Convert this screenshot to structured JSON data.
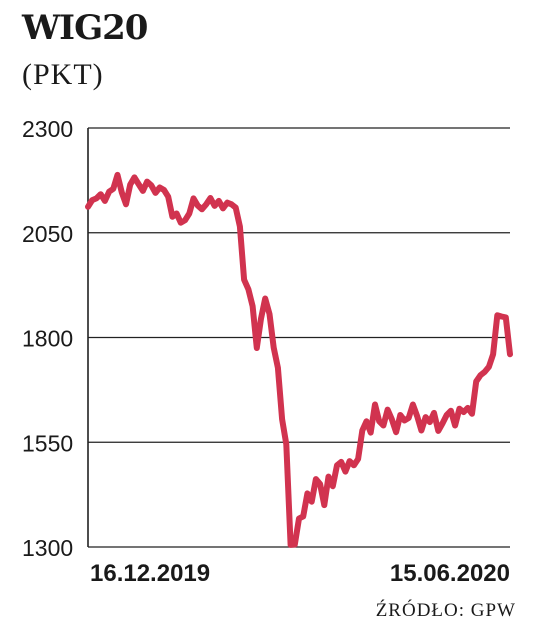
{
  "chart_data": {
    "type": "line",
    "title": "WIG20",
    "unit_label": "(PKT)",
    "source": "ŹRÓDŁO: GPW",
    "x_labels": [
      "16.12.2019",
      "15.06.2020"
    ],
    "yticks": [
      "2300",
      "2050",
      "1800",
      "1550",
      "1300"
    ],
    "ylim": [
      1300,
      2300
    ],
    "grid": true,
    "line_color": "#d1334f",
    "series": [
      {
        "values": [
          2112,
          2128,
          2132,
          2142,
          2126,
          2148,
          2155,
          2188,
          2146,
          2118,
          2165,
          2182,
          2166,
          2150,
          2172,
          2163,
          2145,
          2158,
          2152,
          2136,
          2088,
          2096,
          2074,
          2080,
          2096,
          2132,
          2115,
          2106,
          2118,
          2133,
          2114,
          2126,
          2108,
          2122,
          2118,
          2110,
          2065,
          1938,
          1915,
          1875,
          1775,
          1845,
          1893,
          1856,
          1776,
          1728,
          1605,
          1545,
          1305,
          1306,
          1368,
          1373,
          1428,
          1408,
          1462,
          1450,
          1400,
          1468,
          1445,
          1495,
          1503,
          1480,
          1505,
          1495,
          1510,
          1578,
          1600,
          1573,
          1640,
          1600,
          1590,
          1628,
          1605,
          1574,
          1615,
          1602,
          1608,
          1640,
          1612,
          1578,
          1610,
          1598,
          1620,
          1577,
          1595,
          1615,
          1625,
          1590,
          1630,
          1622,
          1632,
          1618,
          1695,
          1710,
          1718,
          1730,
          1760,
          1853,
          1850,
          1848,
          1760
        ]
      }
    ]
  }
}
